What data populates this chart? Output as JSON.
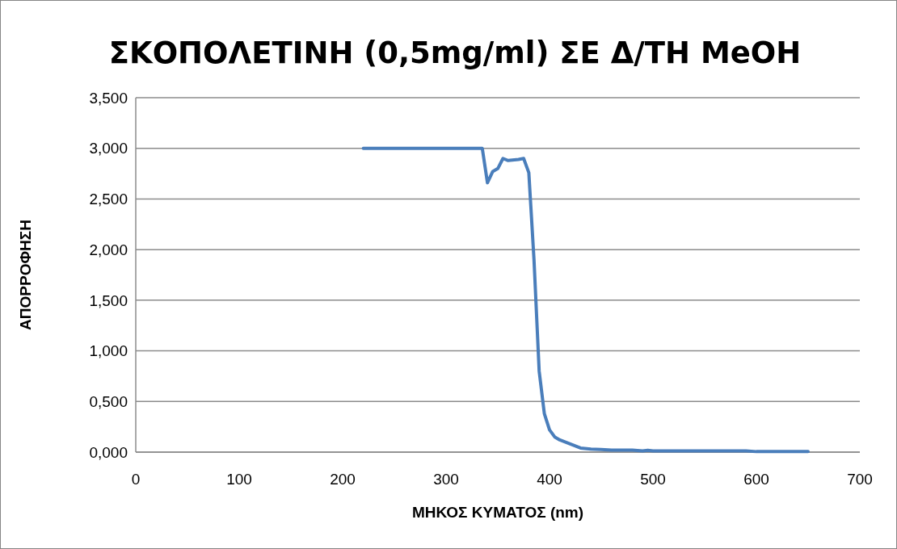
{
  "chart_data": {
    "type": "line",
    "title": "ΣΚΟΠΟΛΕΤΙΝΗ (0,5mg/ml) ΣΕ Δ/ΤΗ MeOH",
    "xlabel": "ΜΗΚΟΣ ΚΥΜΑΤΟΣ (nm)",
    "ylabel": "ΑΠΟΡΡΟΦΗΣΗ",
    "xlim": [
      0,
      700
    ],
    "xticks": [
      0,
      100,
      200,
      300,
      400,
      500,
      600,
      700
    ],
    "ylim": [
      0,
      3.5
    ],
    "yticks": [
      {
        "value": 0,
        "label": "0,000"
      },
      {
        "value": 0.5,
        "label": "0,500"
      },
      {
        "value": 1,
        "label": "1,000"
      },
      {
        "value": 1.5,
        "label": "1,500"
      },
      {
        "value": 2,
        "label": "2,000"
      },
      {
        "value": 2.5,
        "label": "2,500"
      },
      {
        "value": 3,
        "label": "3,000"
      },
      {
        "value": 3.5,
        "label": "3,500"
      }
    ],
    "grid": "y",
    "marker": "none",
    "line_style": "solid",
    "series": [
      {
        "color": "#4a7ebb",
        "x": [
          220,
          335,
          340,
          345,
          350,
          355,
          360,
          370,
          375,
          380,
          385,
          390,
          395,
          400,
          405,
          410,
          420,
          430,
          440,
          450,
          460,
          480,
          490,
          495,
          500,
          590,
          600,
          650
        ],
        "values": [
          3.0,
          3.0,
          2.66,
          2.77,
          2.8,
          2.9,
          2.88,
          2.89,
          2.9,
          2.76,
          1.9,
          0.8,
          0.38,
          0.22,
          0.15,
          0.12,
          0.08,
          0.04,
          0.03,
          0.025,
          0.02,
          0.02,
          0.012,
          0.018,
          0.012,
          0.012,
          0.005,
          0.005
        ]
      }
    ]
  }
}
